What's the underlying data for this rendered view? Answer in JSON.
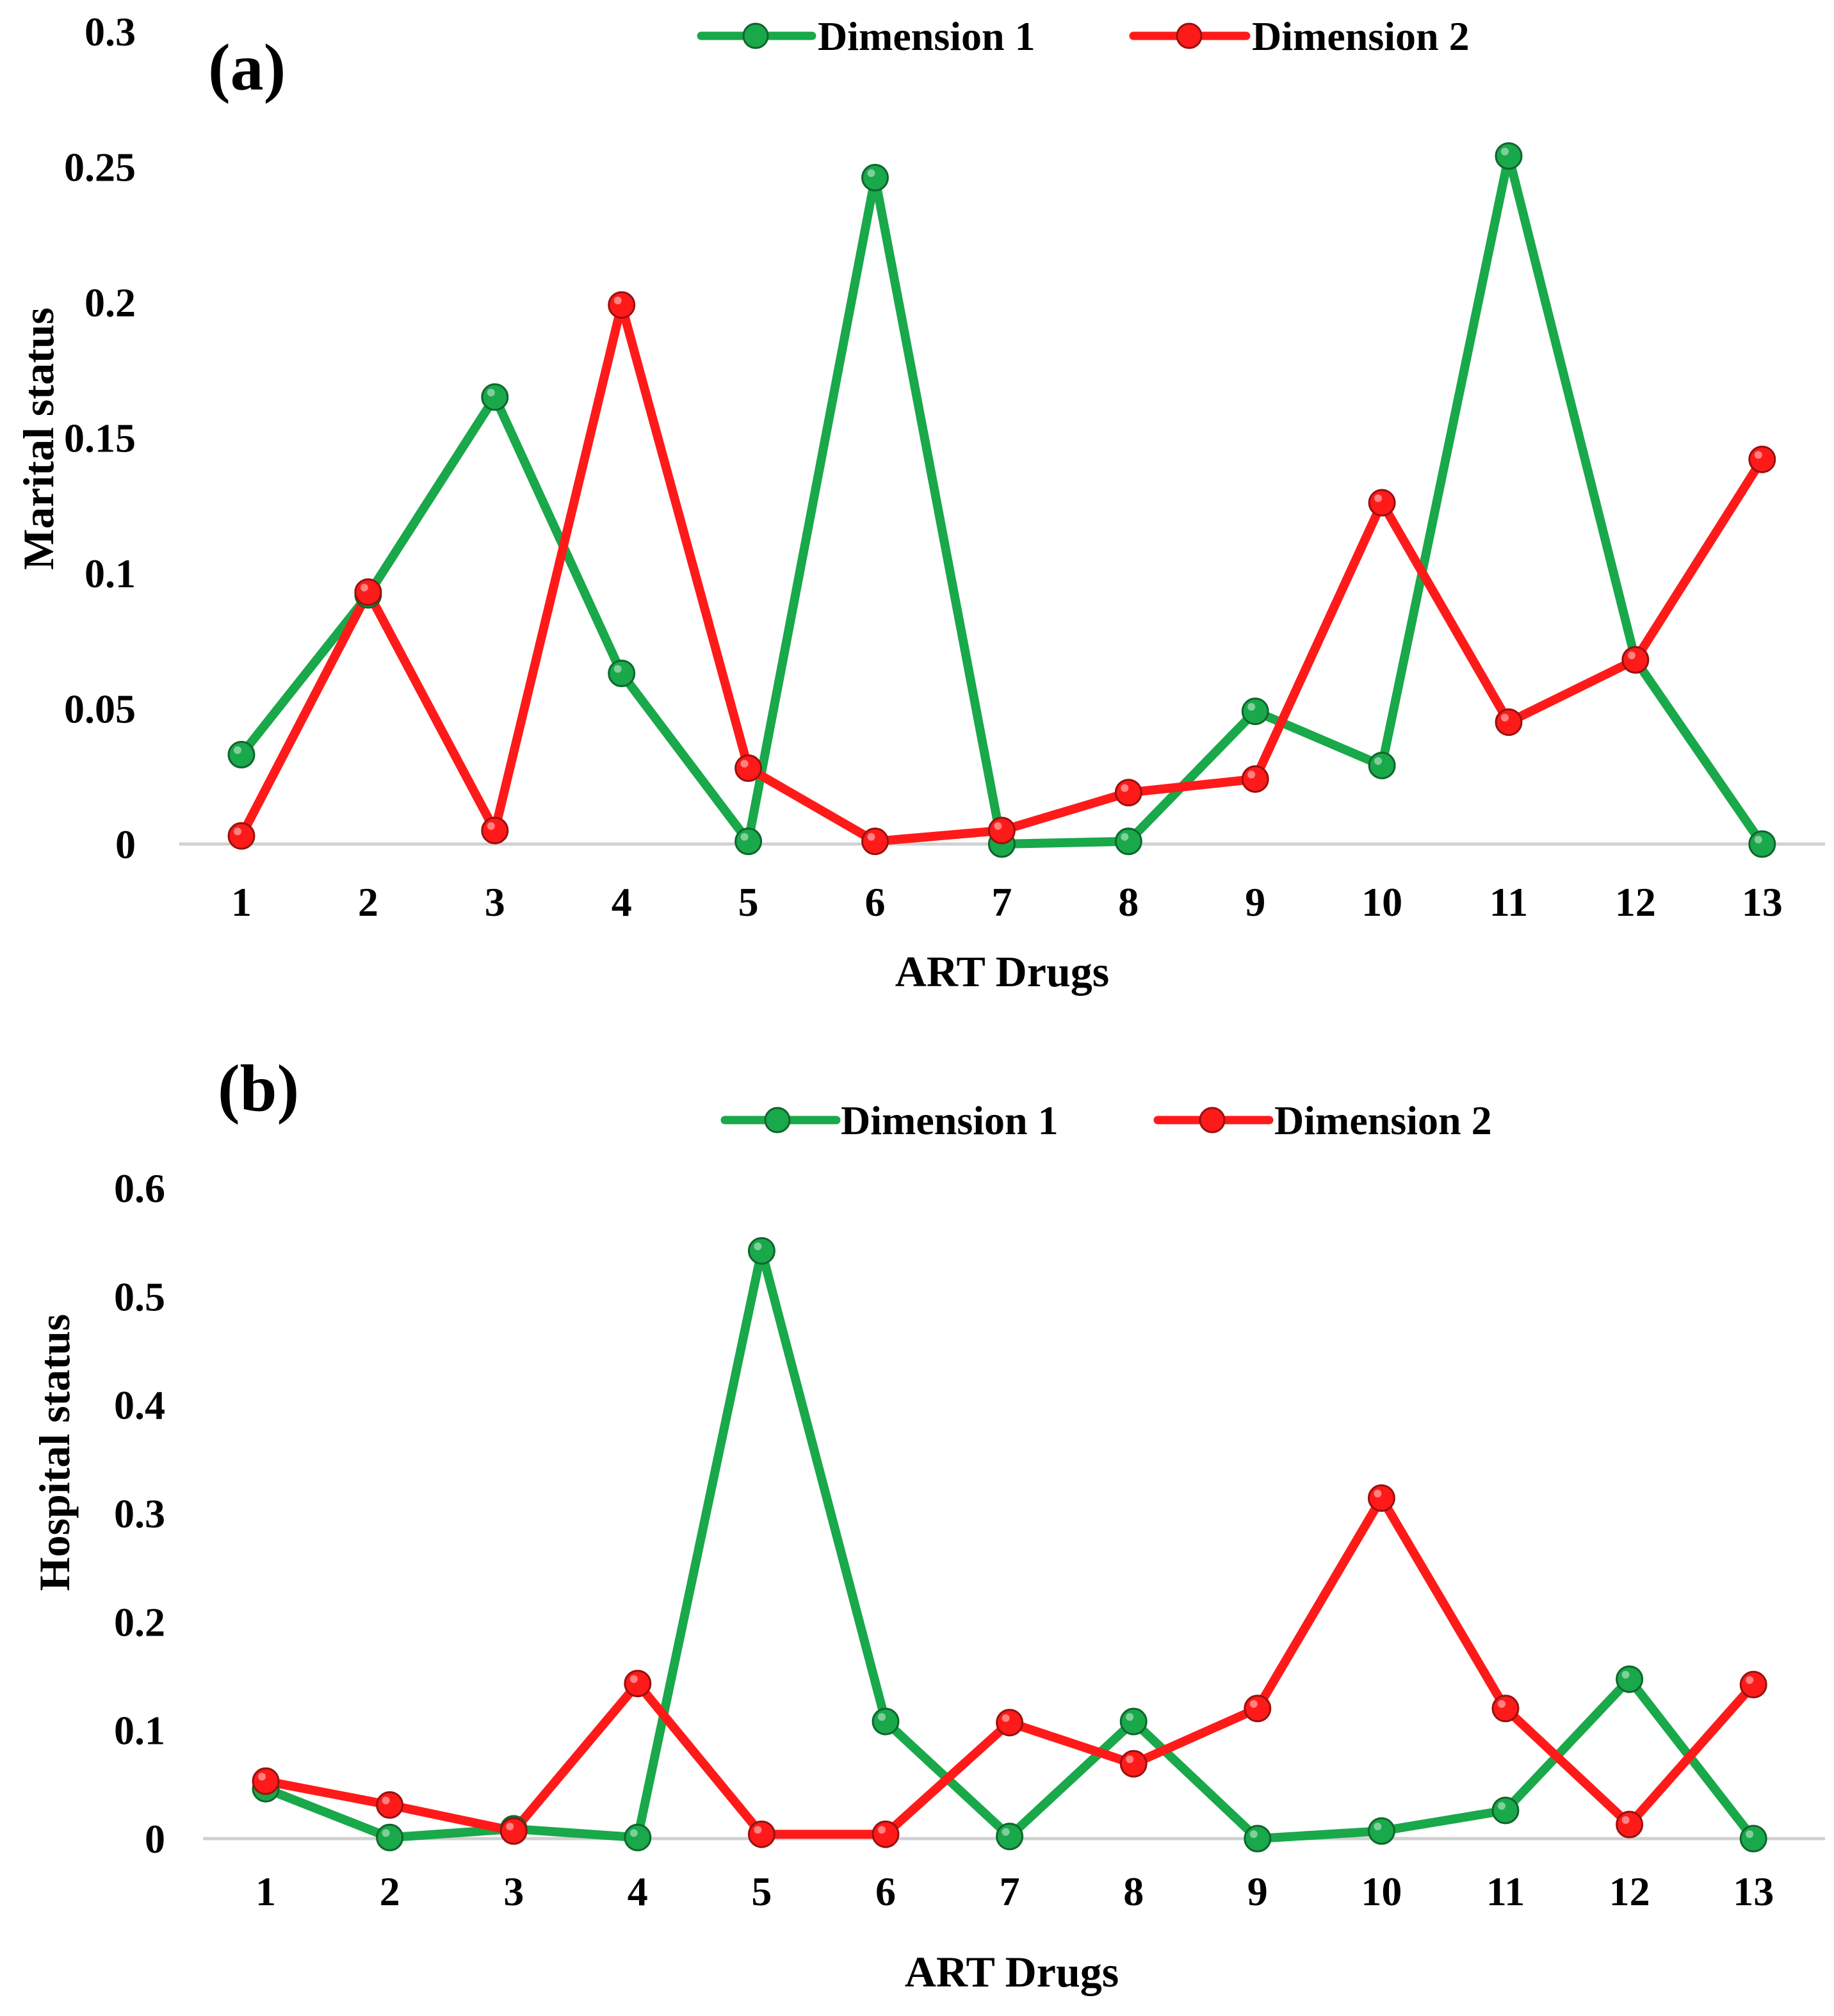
{
  "colors": {
    "dimension_1": "#19a84a",
    "dimension_2": "#ff1a1a",
    "axis": "#d0d0d0"
  },
  "chart_data": [
    {
      "id": "a",
      "panel_label": "(a)",
      "type": "line",
      "categories": [
        "1",
        "2",
        "3",
        "4",
        "5",
        "6",
        "7",
        "8",
        "9",
        "10",
        "11",
        "12",
        "13"
      ],
      "xlabel": "ART Drugs",
      "ylabel": "Marital status",
      "ylim": [
        0,
        0.3
      ],
      "yticks": [
        "0",
        "0.05",
        "0.1",
        "0.15",
        "0.2",
        "0.25",
        "0.3"
      ],
      "legend_position": "top",
      "grid": false,
      "series": [
        {
          "name": "Dimension 1",
          "color": "#19a84a",
          "values": [
            0.033,
            0.092,
            0.165,
            0.063,
            0.001,
            0.246,
            0.0,
            0.001,
            0.049,
            0.029,
            0.254,
            0.068,
            0.0
          ]
        },
        {
          "name": "Dimension 2",
          "color": "#ff1a1a",
          "values": [
            0.003,
            0.093,
            0.005,
            0.199,
            0.028,
            0.001,
            0.005,
            0.019,
            0.024,
            0.126,
            0.045,
            0.068,
            0.142
          ]
        }
      ]
    },
    {
      "id": "b",
      "panel_label": "(b)",
      "type": "line",
      "categories": [
        "1",
        "2",
        "3",
        "4",
        "5",
        "6",
        "7",
        "8",
        "9",
        "10",
        "11",
        "12",
        "13"
      ],
      "xlabel": "ART Drugs",
      "ylabel": "Hospital status",
      "ylim": [
        0,
        0.6
      ],
      "yticks": [
        "0",
        "0.1",
        "0.2",
        "0.3",
        "0.4",
        "0.5",
        "0.6"
      ],
      "legend_position": "top",
      "grid": false,
      "series": [
        {
          "name": "Dimension 1",
          "color": "#19a84a",
          "values": [
            0.046,
            0.001,
            0.009,
            0.001,
            0.542,
            0.108,
            0.002,
            0.108,
            0.0,
            0.007,
            0.026,
            0.147,
            0.0
          ]
        },
        {
          "name": "Dimension 2",
          "color": "#ff1a1a",
          "values": [
            0.053,
            0.031,
            0.007,
            0.143,
            0.004,
            0.004,
            0.107,
            0.069,
            0.12,
            0.314,
            0.12,
            0.013,
            0.142
          ]
        }
      ]
    }
  ]
}
